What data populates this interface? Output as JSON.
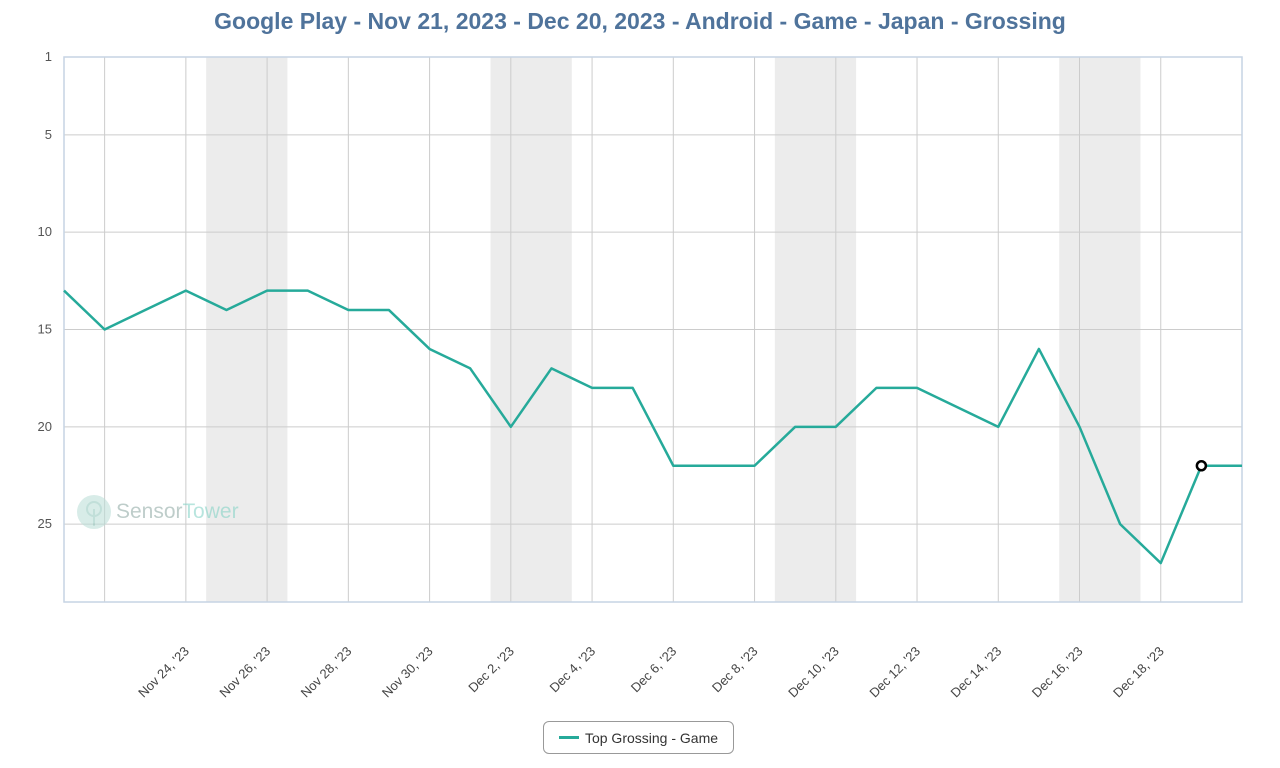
{
  "chart_data": {
    "type": "line",
    "title": "Google Play - Nov 21, 2023 - Dec 20, 2023 - Android - Game - Japan - Grossing",
    "xlabel": "",
    "ylabel": "",
    "y_axis": {
      "inverted": true,
      "range": [
        1,
        29
      ],
      "ticks": [
        1,
        5,
        10,
        15,
        20,
        25
      ]
    },
    "x": [
      "2023-11-21",
      "2023-11-22",
      "2023-11-23",
      "2023-11-24",
      "2023-11-25",
      "2023-11-26",
      "2023-11-27",
      "2023-11-28",
      "2023-11-29",
      "2023-11-30",
      "2023-12-01",
      "2023-12-02",
      "2023-12-03",
      "2023-12-04",
      "2023-12-05",
      "2023-12-06",
      "2023-12-07",
      "2023-12-08",
      "2023-12-09",
      "2023-12-10",
      "2023-12-11",
      "2023-12-12",
      "2023-12-13",
      "2023-12-14",
      "2023-12-15",
      "2023-12-16",
      "2023-12-17",
      "2023-12-18",
      "2023-12-19",
      "2023-12-20"
    ],
    "x_tick_labels": [
      "Nov 24, '23",
      "Nov 26, '23",
      "Nov 28, '23",
      "Nov 30, '23",
      "Dec 2, '23",
      "Dec 4, '23",
      "Dec 6, '23",
      "Dec 8, '23",
      "Dec 10, '23",
      "Dec 12, '23",
      "Dec 14, '23",
      "Dec 16, '23",
      "Dec 18, '23"
    ],
    "weekend_bands": [
      [
        "2023-11-25",
        "2023-11-26"
      ],
      [
        "2023-12-02",
        "2023-12-03"
      ],
      [
        "2023-12-09",
        "2023-12-10"
      ],
      [
        "2023-12-16",
        "2023-12-17"
      ]
    ],
    "series": [
      {
        "name": "Top Grossing - Game",
        "color": "#26aa9a",
        "values": [
          13,
          15,
          14,
          13,
          14,
          13,
          13,
          14,
          14,
          16,
          17,
          20,
          17,
          18,
          18,
          22,
          22,
          22,
          20,
          20,
          18,
          18,
          19,
          20,
          16,
          20,
          25,
          27,
          22,
          22
        ]
      }
    ],
    "highlighted_point": "2023-12-19",
    "grid": true,
    "legend": "bottom-center"
  },
  "legend": {
    "label": "Top Grossing - Game",
    "color": "#26aa9a"
  },
  "watermark": {
    "part1": "Sensor",
    "part2": "Tower",
    "icon": "sensor-tower-logo-icon"
  },
  "colors": {
    "title": "#4f739b",
    "line": "#26aa9a",
    "weekend_band": "#ececec",
    "grid": "#cccccc",
    "axis": "#c6d4e4"
  }
}
